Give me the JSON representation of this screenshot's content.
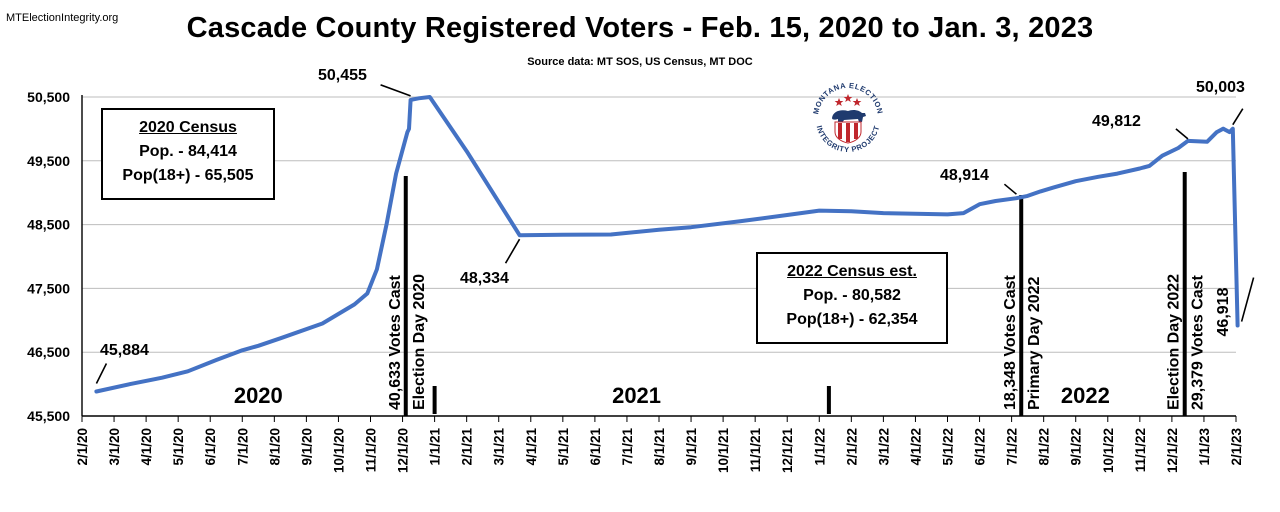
{
  "header": {
    "site": "MTElectionIntegrity.org",
    "title": "Cascade County Registered Voters - Feb. 15, 2020 to Jan. 3, 2023",
    "source": "Source data: MT SOS, US Census, MT DOC"
  },
  "logo": {
    "text_top": "MONTANA ELECTION",
    "text_bottom": "INTEGRITY PROJECT",
    "colors": {
      "red": "#c0272d",
      "navy": "#1f3a6e"
    }
  },
  "census_2020": {
    "title": "2020 Census",
    "pop": "Pop. - 84,414",
    "pop18": "Pop(18+) - 65,505"
  },
  "census_2022": {
    "title": "2022 Census est.",
    "pop": "Pop. - 80,582",
    "pop18": "Pop(18+) - 62,354"
  },
  "chart_data": {
    "type": "line",
    "title": "Cascade County Registered Voters - Feb. 15, 2020 to Jan. 3, 2023",
    "subtitle": "Source data: MT SOS, US Census, MT DOC",
    "xlabel": "",
    "ylabel": "",
    "ylim": [
      45500,
      50500
    ],
    "yticks": [
      "45,500",
      "46,500",
      "47,500",
      "48,500",
      "49,500",
      "50,500"
    ],
    "xticks": [
      "2/1/20",
      "3/1/20",
      "4/1/20",
      "5/1/20",
      "6/1/20",
      "7/1/20",
      "8/1/20",
      "9/1/20",
      "10/1/20",
      "11/1/20",
      "12/1/20",
      "1/1/21",
      "2/1/21",
      "3/1/21",
      "4/1/21",
      "5/1/21",
      "6/1/21",
      "7/1/21",
      "8/1/21",
      "9/1/21",
      "10/1/21",
      "11/1/21",
      "12/1/21",
      "1/1/22",
      "2/1/22",
      "3/1/22",
      "4/1/22",
      "5/1/22",
      "6/1/22",
      "7/1/22",
      "8/1/22",
      "9/1/22",
      "10/1/22",
      "11/1/22",
      "12/1/22",
      "1/1/23",
      "2/1/23"
    ],
    "grid": true,
    "color": "#4472c4",
    "series": [
      {
        "name": "Registered Voters",
        "points": [
          [
            0.45,
            45884
          ],
          [
            1.5,
            46000
          ],
          [
            2.5,
            46100
          ],
          [
            3.3,
            46200
          ],
          [
            4.2,
            46380
          ],
          [
            5,
            46530
          ],
          [
            5.5,
            46600
          ],
          [
            6.2,
            46720
          ],
          [
            7.5,
            46950
          ],
          [
            8.5,
            47250
          ],
          [
            8.9,
            47420
          ],
          [
            9.2,
            47800
          ],
          [
            9.5,
            48500
          ],
          [
            9.8,
            49300
          ],
          [
            10.15,
            49950
          ],
          [
            10.2,
            50000
          ],
          [
            10.25,
            50455
          ],
          [
            10.5,
            50480
          ],
          [
            10.85,
            50500
          ],
          [
            12.0,
            49650
          ],
          [
            13.65,
            48334
          ],
          [
            15,
            48340
          ],
          [
            16.5,
            48345
          ],
          [
            18,
            48420
          ],
          [
            19,
            48460
          ],
          [
            20.5,
            48550
          ],
          [
            22,
            48650
          ],
          [
            23,
            48720
          ],
          [
            24,
            48710
          ],
          [
            25,
            48680
          ],
          [
            27,
            48660
          ],
          [
            27.5,
            48680
          ],
          [
            28,
            48820
          ],
          [
            28.5,
            48870
          ],
          [
            29.15,
            48914
          ],
          [
            29.5,
            48950
          ],
          [
            29.9,
            49020
          ],
          [
            30.3,
            49080
          ],
          [
            31,
            49180
          ],
          [
            31.7,
            49250
          ],
          [
            32.3,
            49300
          ],
          [
            33,
            49380
          ],
          [
            33.3,
            49420
          ],
          [
            33.7,
            49580
          ],
          [
            34.2,
            49700
          ],
          [
            34.5,
            49812
          ],
          [
            35.1,
            49800
          ],
          [
            35.4,
            49950
          ],
          [
            35.6,
            50003
          ],
          [
            35.8,
            49950
          ],
          [
            35.9,
            50003
          ],
          [
            36.05,
            46918
          ]
        ]
      }
    ],
    "annotations": [
      {
        "label": "45,884",
        "x": 0.45,
        "y": 45884
      },
      {
        "label": "50,455",
        "x": 10.25,
        "y": 50455
      },
      {
        "label": "48,334",
        "x": 13.65,
        "y": 48334
      },
      {
        "label": "48,914",
        "x": 29.15,
        "y": 48914
      },
      {
        "label": "49,812",
        "x": 34.5,
        "y": 49812
      },
      {
        "label": "50,003",
        "x": 35.9,
        "y": 50003
      },
      {
        "label": "46,918",
        "x": 36.05,
        "y": 46918
      }
    ],
    "events": [
      {
        "x": 10.1,
        "label1": "40,633 Votes Cast",
        "label2": "Election Day 2020"
      },
      {
        "x": 29.3,
        "label1": "18,348 Votes Cast",
        "label2": "Primary Day 2022"
      },
      {
        "x": 34.4,
        "label1": "Election Day 2022",
        "label2": "29,379 Votes Cast"
      }
    ],
    "year_markers": [
      11,
      23.3
    ],
    "years": [
      {
        "label": "2020",
        "x": 5.5
      },
      {
        "label": "2021",
        "x": 17.3
      },
      {
        "label": "2022",
        "x": 31.3
      }
    ]
  }
}
